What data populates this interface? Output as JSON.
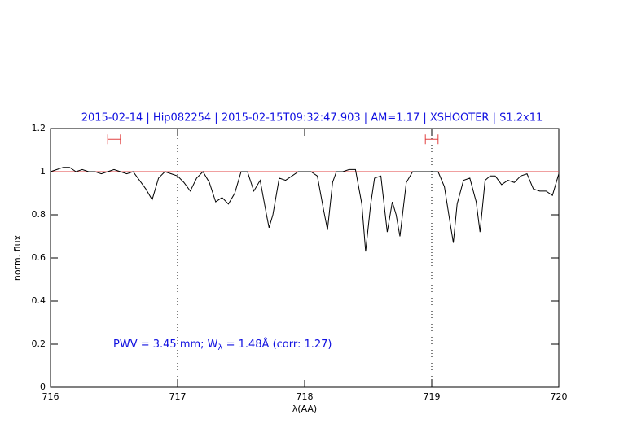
{
  "chart_data": {
    "type": "line",
    "title": "2015-02-14 | Hip082254 | 2015-02-15T09:32:47.903 | AM=1.17 | XSHOOTER | S1.2x11",
    "xlabel": "λ(AA)",
    "ylabel": "norm. flux",
    "annotation": [
      "PWV = 3.45 mm; W",
      "λ",
      " = 1.48Å (corr: 1.27)"
    ],
    "xlim": [
      716,
      720
    ],
    "ylim": [
      0,
      1.2
    ],
    "xticks": [
      716,
      717,
      718,
      719,
      720
    ],
    "yticks": [
      0,
      0.2,
      0.4,
      0.6,
      0.8,
      1,
      1.2
    ],
    "continuum": 1,
    "continuum_color": "#e04040",
    "vlines": [
      717,
      719
    ],
    "regions": [
      [
        716.45,
        716.55
      ],
      [
        718.95,
        719.05
      ]
    ],
    "region_y": 1.15,
    "region_color": "#e04040",
    "series": [
      {
        "color": "#000000",
        "x": [
          716.0,
          716.05,
          716.1,
          716.15,
          716.2,
          716.25,
          716.3,
          716.35,
          716.4,
          716.45,
          716.5,
          716.55,
          716.6,
          716.65,
          716.7,
          716.75,
          716.8,
          716.85,
          716.9,
          716.95,
          717.0,
          717.05,
          717.1,
          717.15,
          717.2,
          717.25,
          717.3,
          717.35,
          717.4,
          717.45,
          717.5,
          717.55,
          717.6,
          717.65,
          717.7,
          717.72,
          717.75,
          717.8,
          717.85,
          717.9,
          717.95,
          718.0,
          718.05,
          718.1,
          718.15,
          718.18,
          718.22,
          718.25,
          718.3,
          718.35,
          718.4,
          718.45,
          718.48,
          718.52,
          718.55,
          718.6,
          718.65,
          718.69,
          718.72,
          718.75,
          718.8,
          718.85,
          718.9,
          718.95,
          719.0,
          719.05,
          719.1,
          719.14,
          719.17,
          719.2,
          719.25,
          719.3,
          719.35,
          719.38,
          719.42,
          719.46,
          719.5,
          719.55,
          719.6,
          719.65,
          719.7,
          719.75,
          719.8,
          719.85,
          719.9,
          719.95,
          720.0
        ],
        "values": [
          1.0,
          1.01,
          1.02,
          1.02,
          1.0,
          1.01,
          1.0,
          1.0,
          0.99,
          1.0,
          1.01,
          1.0,
          0.99,
          1.0,
          0.96,
          0.92,
          0.87,
          0.97,
          1.0,
          0.99,
          0.98,
          0.95,
          0.91,
          0.97,
          1.0,
          0.95,
          0.86,
          0.88,
          0.85,
          0.9,
          1.0,
          1.0,
          0.91,
          0.96,
          0.8,
          0.74,
          0.8,
          0.97,
          0.96,
          0.98,
          1.0,
          1.0,
          1.0,
          0.98,
          0.82,
          0.73,
          0.95,
          1.0,
          1.0,
          1.01,
          1.01,
          0.85,
          0.63,
          0.85,
          0.97,
          0.98,
          0.72,
          0.86,
          0.8,
          0.7,
          0.95,
          1.0,
          1.0,
          1.0,
          1.0,
          1.0,
          0.93,
          0.78,
          0.67,
          0.85,
          0.96,
          0.97,
          0.86,
          0.72,
          0.96,
          0.98,
          0.98,
          0.94,
          0.96,
          0.95,
          0.98,
          0.99,
          0.92,
          0.91,
          0.91,
          0.89,
          0.99
        ]
      }
    ]
  }
}
